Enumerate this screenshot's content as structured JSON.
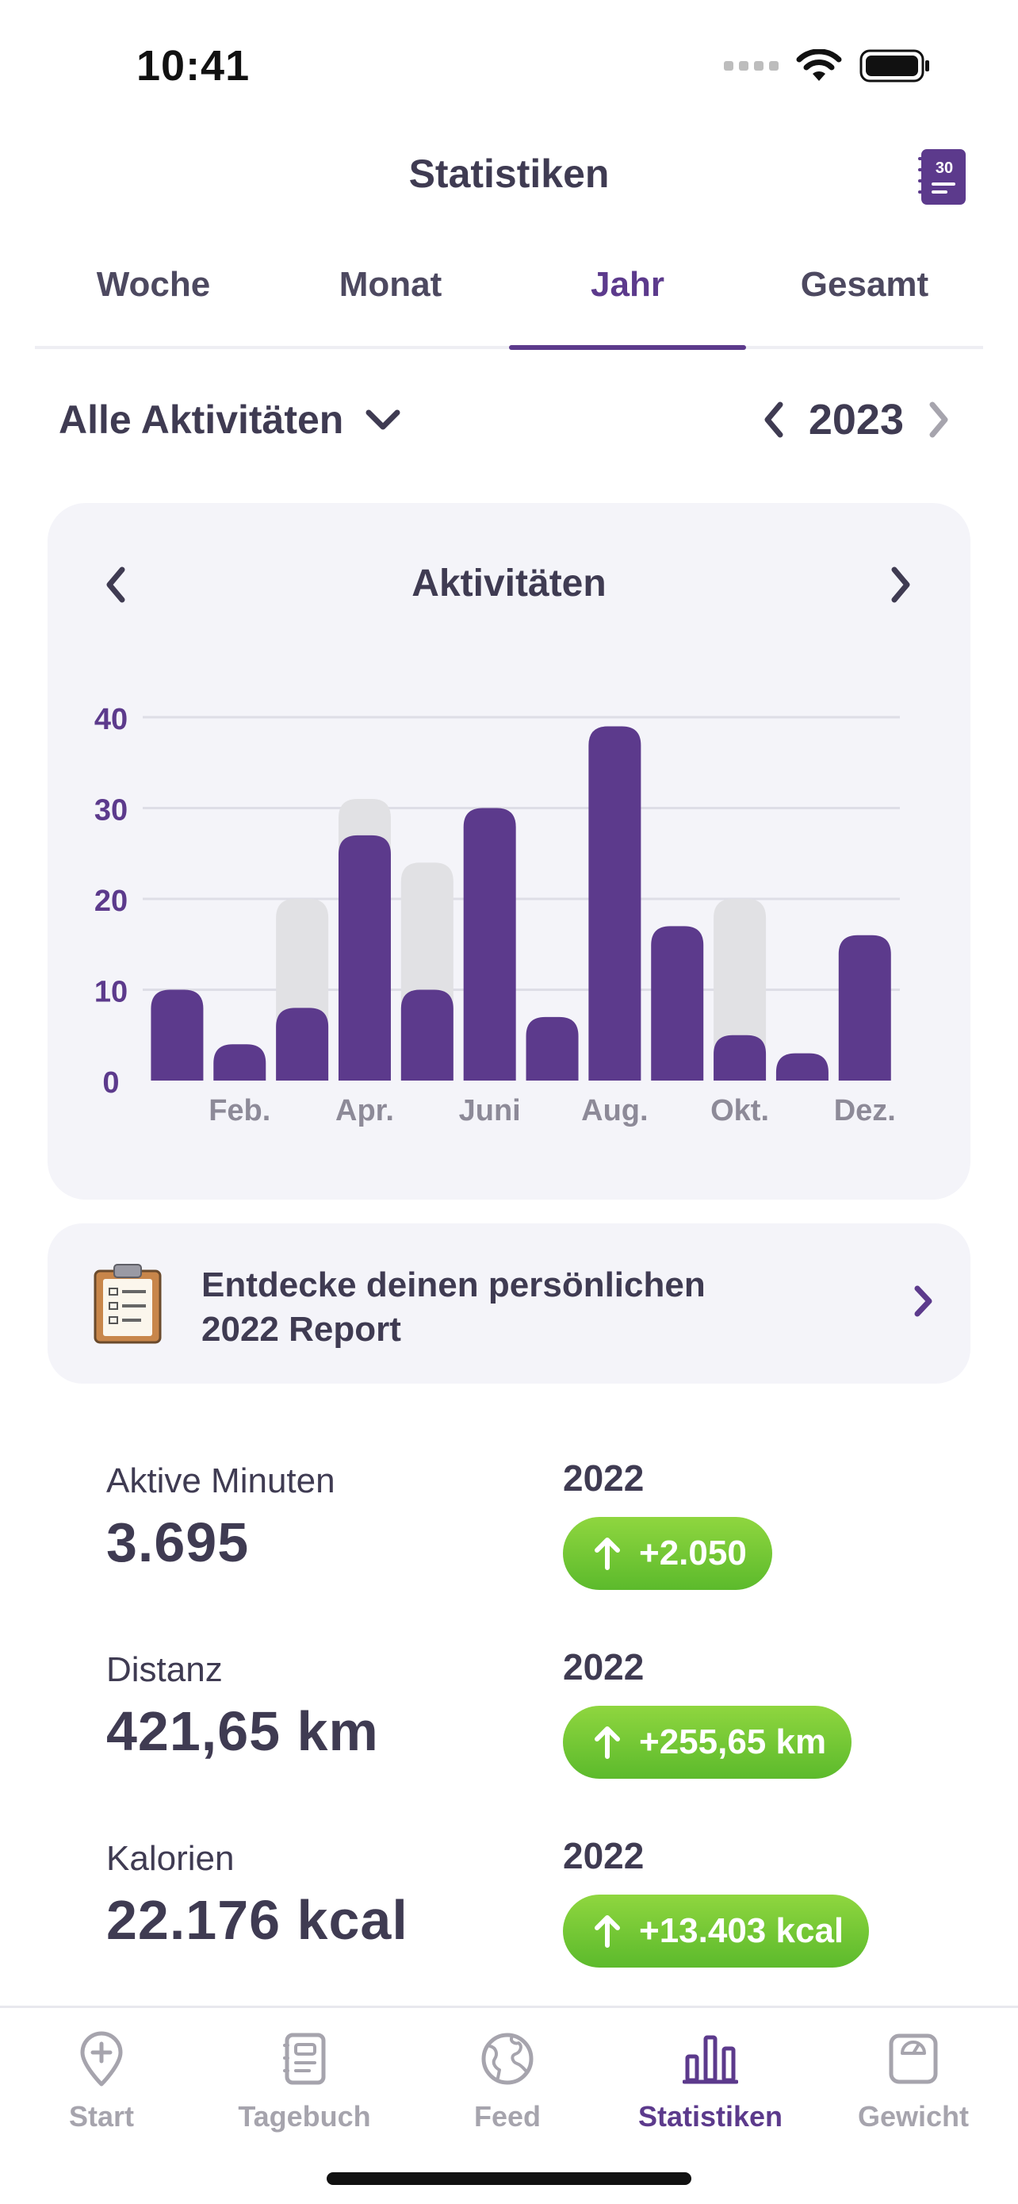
{
  "status_bar": {
    "time": "10:41"
  },
  "header": {
    "title": "Statistiken",
    "calendar_badge": "30"
  },
  "tabs": [
    {
      "label": "Woche",
      "active": false
    },
    {
      "label": "Monat",
      "active": false
    },
    {
      "label": "Jahr",
      "active": true
    },
    {
      "label": "Gesamt",
      "active": false
    }
  ],
  "filter": {
    "activity_label": "Alle Aktivitäten",
    "year": "2023"
  },
  "chart_card": {
    "title": "Aktivitäten"
  },
  "chart_data": {
    "type": "bar",
    "title": "Aktivitäten",
    "categories": [
      "Jan.",
      "Feb.",
      "März",
      "Apr.",
      "Mai",
      "Juni",
      "Juli",
      "Aug.",
      "Sept.",
      "Okt.",
      "Nov.",
      "Dez."
    ],
    "x_tick_labels": [
      "",
      "Feb.",
      "",
      "Apr.",
      "",
      "Juni",
      "",
      "Aug.",
      "",
      "Okt.",
      "",
      "Dez."
    ],
    "series": [
      {
        "name": "2023",
        "color": "#5c3a8c",
        "values": [
          10,
          4,
          8,
          27,
          10,
          30,
          7,
          39,
          17,
          5,
          3,
          16
        ]
      },
      {
        "name": "2022",
        "color": "#e1e1e4",
        "values": [
          0,
          0,
          20,
          31,
          24,
          0,
          0,
          0,
          0,
          20,
          0,
          0
        ]
      }
    ],
    "yticks": [
      0,
      10,
      20,
      30,
      40
    ],
    "ylim": [
      0,
      40
    ],
    "grid": true,
    "xlabel": "",
    "ylabel": ""
  },
  "report": {
    "line1": "Entdecke deinen persönlichen",
    "line2": "2022 Report"
  },
  "stats": [
    {
      "label": "Aktive Minuten",
      "value": "3.695",
      "compare_year": "2022",
      "delta": "+2.050"
    },
    {
      "label": "Distanz",
      "value": "421,65 km",
      "compare_year": "2022",
      "delta": "+255,65 km"
    },
    {
      "label": "Kalorien",
      "value": "22.176 kcal",
      "compare_year": "2022",
      "delta": "+13.403 kcal"
    }
  ],
  "tabbar": [
    {
      "label": "Start",
      "icon": "map-pin-plus-icon",
      "active": false
    },
    {
      "label": "Tagebuch",
      "icon": "notebook-icon",
      "active": false
    },
    {
      "label": "Feed",
      "icon": "globe-icon",
      "active": false
    },
    {
      "label": "Statistiken",
      "icon": "bar-chart-icon",
      "active": true
    },
    {
      "label": "Gewicht",
      "icon": "scale-icon",
      "active": false
    }
  ],
  "colors": {
    "accent": "#5c3a8c",
    "text": "#3f3b52",
    "badge_green": "#6cc533",
    "card_bg": "#f4f4f9"
  }
}
